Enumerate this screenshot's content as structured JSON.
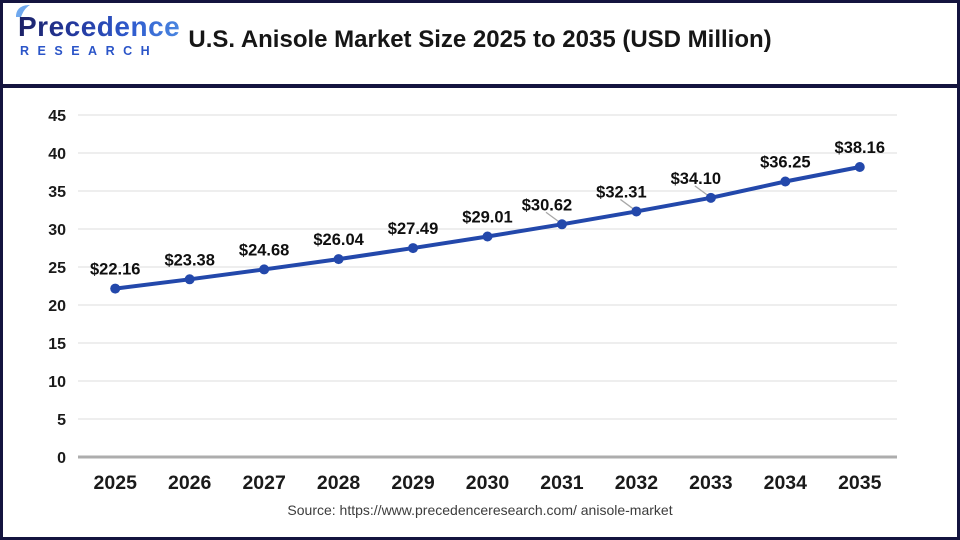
{
  "header": {
    "logo": {
      "name": "Precedence",
      "subtitle": "RESEARCH"
    },
    "title": "U.S. Anisole Market Size 2025 to 2035 (USD Million)"
  },
  "footer": {
    "source": "Source: https://www.precedenceresearch.com/ anisole-market"
  },
  "colors": {
    "line": "#2348AB",
    "marker": "#2348AB",
    "grid": "#e3e3e3",
    "zero_axis": "#ADADAD",
    "border": "#14143F",
    "data_label": "#0F0F0F",
    "axis_label": "#1A1A1A",
    "leader": "#A8A8A8",
    "logo_navy": "#1B2166",
    "logo_blue": "#4A86E0",
    "logo_leaf": "#6FA8EE"
  },
  "chart_data": {
    "type": "line",
    "title": "U.S. Anisole Market Size 2025 to 2035 (USD Million)",
    "categories": [
      "2025",
      "2026",
      "2027",
      "2028",
      "2029",
      "2030",
      "2031",
      "2032",
      "2033",
      "2034",
      "2035"
    ],
    "values": [
      22.16,
      23.38,
      24.68,
      26.04,
      27.49,
      29.01,
      30.62,
      32.31,
      34.1,
      36.25,
      38.16
    ],
    "labels": [
      "$22.16",
      "$23.38",
      "$24.68",
      "$26.04",
      "$27.49",
      "$29.01",
      "$30.62",
      "$32.31",
      "$34.10",
      "$36.25",
      "$38.16"
    ],
    "xlabel": "",
    "ylabel": "",
    "ylim": [
      0,
      45
    ],
    "ytick_step": 5,
    "yticks": [
      0,
      5,
      10,
      15,
      20,
      25,
      30,
      35,
      40,
      45
    ],
    "grid": "horizontal",
    "legend": "none",
    "callout_indices": [
      6,
      7,
      8
    ],
    "unit": "USD Million"
  }
}
